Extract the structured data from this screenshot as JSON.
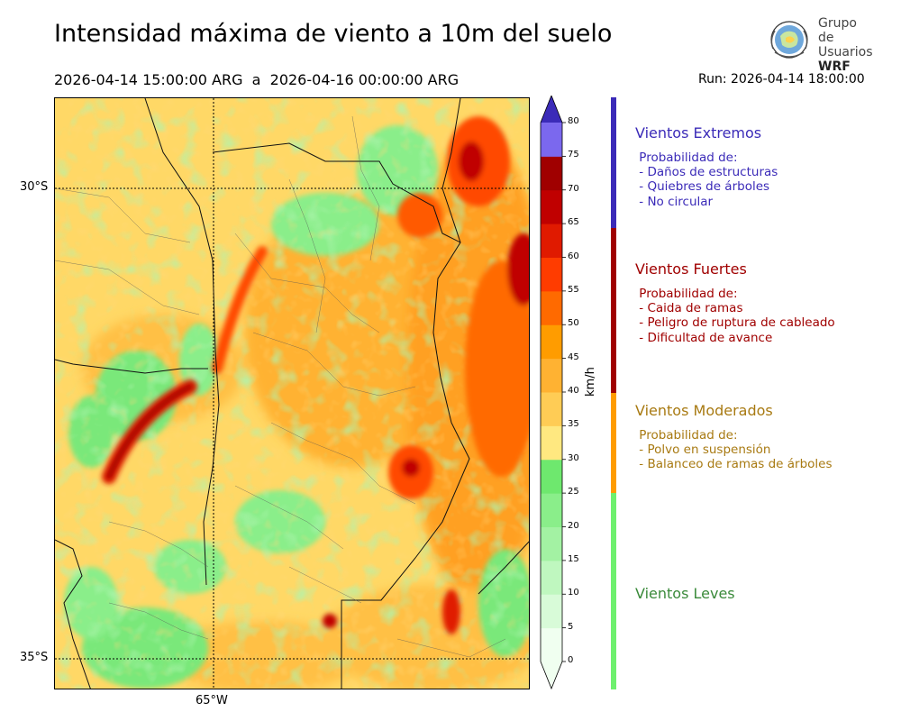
{
  "header": {
    "title": "Intensidad máxima de viento a 10m del suelo",
    "period_start": "2026-04-14 15:00:00 ARG",
    "period_sep": "a",
    "period_end": "2026-04-16 00:00:00 ARG",
    "run": "Run: 2026-04-14 18:00:00"
  },
  "logo": {
    "line1": "Grupo de",
    "line2": "Usuarios",
    "line3": "WRF"
  },
  "map": {
    "lat_labels": [
      "30°S",
      "35°S"
    ],
    "lon_labels": [
      "65°W"
    ]
  },
  "colorbar": {
    "unit": "km/h",
    "ticks": [
      "0",
      "5",
      "10",
      "15",
      "20",
      "25",
      "30",
      "35",
      "40",
      "45",
      "50",
      "55",
      "60",
      "65",
      "70",
      "75",
      "80"
    ],
    "colors": [
      "#f0fff0",
      "#d8fbd8",
      "#bff7bf",
      "#a3f2a3",
      "#8aee8a",
      "#6ee86e",
      "#ffe880",
      "#ffcc55",
      "#ffb232",
      "#ff9c00",
      "#ff6a00",
      "#ff3c00",
      "#e01a00",
      "#c00000",
      "#a00000",
      "#7b68ee",
      "#5a46d8",
      "#3b2bb8"
    ]
  },
  "legend": [
    {
      "title": "Vientos Extremos",
      "color": "#3b2bb8",
      "desc": " Probabilidad de:\n - Daños de estructuras\n - Quiebres de árboles\n - No circular"
    },
    {
      "title": "Vientos Fuertes",
      "color": "#a00000",
      "desc": " Probabilidad de:\n - Caida de ramas\n - Peligro de ruptura de cableado\n - Dificultad de avance"
    },
    {
      "title": "Vientos Moderados",
      "color": "#a87a12",
      "bar_color": "#ff9c00",
      "desc": " Probabilidad de:\n - Polvo en suspensión\n - Balanceo de ramas de árboles"
    },
    {
      "title": "Vientos Leves",
      "color": "#3a8a3a",
      "bar_color": "#6ef06e",
      "desc": ""
    }
  ]
}
